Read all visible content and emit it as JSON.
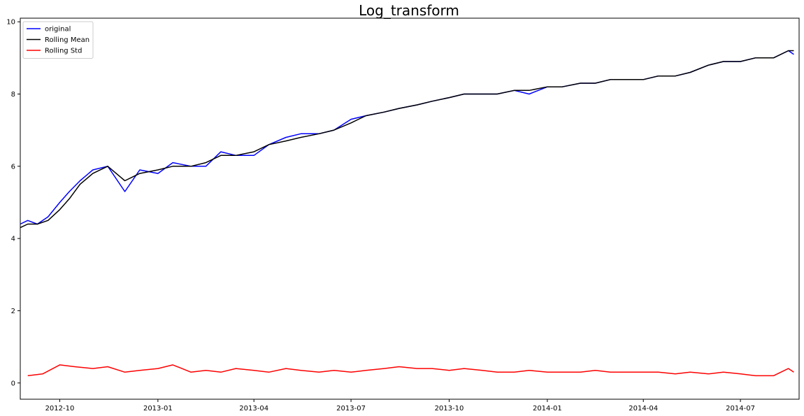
{
  "chart_data": {
    "type": "line",
    "title": "Log_transform",
    "xlabel": "",
    "ylabel": "",
    "x_range": [
      "2012-08-25",
      "2014-08-25"
    ],
    "ylim": [
      -0.45,
      10.1
    ],
    "y_ticks": [
      0,
      2,
      4,
      6,
      8,
      10
    ],
    "x_ticks": [
      {
        "date": "2012-10-01",
        "label": "2012-10"
      },
      {
        "date": "2013-01-01",
        "label": "2013-01"
      },
      {
        "date": "2013-04-01",
        "label": "2013-04"
      },
      {
        "date": "2013-07-01",
        "label": "2013-07"
      },
      {
        "date": "2013-10-01",
        "label": "2013-10"
      },
      {
        "date": "2014-01-01",
        "label": "2014-01"
      },
      {
        "date": "2014-04-01",
        "label": "2014-04"
      },
      {
        "date": "2014-07-01",
        "label": "2014-07"
      }
    ],
    "grid": false,
    "legend_position": "top-left",
    "series": [
      {
        "name": "original",
        "color": "#0000ff",
        "x": [
          "2012-08-25",
          "2012-09-01",
          "2012-09-10",
          "2012-09-20",
          "2012-10-01",
          "2012-10-10",
          "2012-10-20",
          "2012-11-01",
          "2012-11-15",
          "2012-12-01",
          "2012-12-15",
          "2013-01-01",
          "2013-01-15",
          "2013-02-01",
          "2013-02-15",
          "2013-03-01",
          "2013-03-15",
          "2013-04-01",
          "2013-04-15",
          "2013-05-01",
          "2013-05-15",
          "2013-06-01",
          "2013-06-15",
          "2013-07-01",
          "2013-07-15",
          "2013-08-01",
          "2013-08-15",
          "2013-09-01",
          "2013-09-15",
          "2013-10-01",
          "2013-10-15",
          "2013-11-01",
          "2013-11-15",
          "2013-12-01",
          "2013-12-15",
          "2014-01-01",
          "2014-01-15",
          "2014-02-01",
          "2014-02-15",
          "2014-03-01",
          "2014-03-15",
          "2014-04-01",
          "2014-04-15",
          "2014-05-01",
          "2014-05-15",
          "2014-06-01",
          "2014-06-15",
          "2014-07-01",
          "2014-07-15",
          "2014-08-01",
          "2014-08-15",
          "2014-08-20"
        ],
        "values": [
          4.4,
          4.5,
          4.4,
          4.6,
          5.0,
          5.3,
          5.6,
          5.9,
          6.0,
          5.3,
          5.9,
          5.8,
          6.1,
          6.0,
          6.0,
          6.4,
          6.3,
          6.3,
          6.6,
          6.8,
          6.9,
          6.9,
          7.0,
          7.3,
          7.4,
          7.5,
          7.6,
          7.7,
          7.8,
          7.9,
          8.0,
          8.0,
          8.0,
          8.1,
          8.0,
          8.2,
          8.2,
          8.3,
          8.3,
          8.4,
          8.4,
          8.4,
          8.5,
          8.5,
          8.6,
          8.8,
          8.9,
          8.9,
          9.0,
          9.0,
          9.2,
          9.1
        ]
      },
      {
        "name": "Rolling Mean",
        "color": "#000000",
        "x": [
          "2012-08-25",
          "2012-09-01",
          "2012-09-10",
          "2012-09-20",
          "2012-10-01",
          "2012-10-10",
          "2012-10-20",
          "2012-11-01",
          "2012-11-15",
          "2012-12-01",
          "2012-12-15",
          "2013-01-01",
          "2013-01-15",
          "2013-02-01",
          "2013-02-15",
          "2013-03-01",
          "2013-03-15",
          "2013-04-01",
          "2013-04-15",
          "2013-05-01",
          "2013-05-15",
          "2013-06-01",
          "2013-06-15",
          "2013-07-01",
          "2013-07-15",
          "2013-08-01",
          "2013-08-15",
          "2013-09-01",
          "2013-09-15",
          "2013-10-01",
          "2013-10-15",
          "2013-11-01",
          "2013-11-15",
          "2013-12-01",
          "2013-12-15",
          "2014-01-01",
          "2014-01-15",
          "2014-02-01",
          "2014-02-15",
          "2014-03-01",
          "2014-03-15",
          "2014-04-01",
          "2014-04-15",
          "2014-05-01",
          "2014-05-15",
          "2014-06-01",
          "2014-06-15",
          "2014-07-01",
          "2014-07-15",
          "2014-08-01",
          "2014-08-15",
          "2014-08-20"
        ],
        "values": [
          4.3,
          4.4,
          4.4,
          4.5,
          4.8,
          5.1,
          5.5,
          5.8,
          6.0,
          5.6,
          5.8,
          5.9,
          6.0,
          6.0,
          6.1,
          6.3,
          6.3,
          6.4,
          6.6,
          6.7,
          6.8,
          6.9,
          7.0,
          7.2,
          7.4,
          7.5,
          7.6,
          7.7,
          7.8,
          7.9,
          8.0,
          8.0,
          8.0,
          8.1,
          8.1,
          8.2,
          8.2,
          8.3,
          8.3,
          8.4,
          8.4,
          8.4,
          8.5,
          8.5,
          8.6,
          8.8,
          8.9,
          8.9,
          9.0,
          9.0,
          9.2,
          9.2
        ]
      },
      {
        "name": "Rolling Std",
        "color": "#ff0000",
        "x": [
          "2012-09-01",
          "2012-09-15",
          "2012-10-01",
          "2012-10-15",
          "2012-11-01",
          "2012-11-15",
          "2012-12-01",
          "2012-12-15",
          "2013-01-01",
          "2013-01-15",
          "2013-02-01",
          "2013-02-15",
          "2013-03-01",
          "2013-03-15",
          "2013-04-01",
          "2013-04-15",
          "2013-05-01",
          "2013-05-15",
          "2013-06-01",
          "2013-06-15",
          "2013-07-01",
          "2013-07-15",
          "2013-08-01",
          "2013-08-15",
          "2013-09-01",
          "2013-09-15",
          "2013-10-01",
          "2013-10-15",
          "2013-11-01",
          "2013-11-15",
          "2013-12-01",
          "2013-12-15",
          "2014-01-01",
          "2014-01-15",
          "2014-02-01",
          "2014-02-15",
          "2014-03-01",
          "2014-03-15",
          "2014-04-01",
          "2014-04-15",
          "2014-05-01",
          "2014-05-15",
          "2014-06-01",
          "2014-06-15",
          "2014-07-01",
          "2014-07-15",
          "2014-08-01",
          "2014-08-15",
          "2014-08-20"
        ],
        "values": [
          0.2,
          0.25,
          0.5,
          0.45,
          0.4,
          0.45,
          0.3,
          0.35,
          0.4,
          0.5,
          0.3,
          0.35,
          0.3,
          0.4,
          0.35,
          0.3,
          0.4,
          0.35,
          0.3,
          0.35,
          0.3,
          0.35,
          0.4,
          0.45,
          0.4,
          0.4,
          0.35,
          0.4,
          0.35,
          0.3,
          0.3,
          0.35,
          0.3,
          0.3,
          0.3,
          0.35,
          0.3,
          0.3,
          0.3,
          0.3,
          0.25,
          0.3,
          0.25,
          0.3,
          0.25,
          0.2,
          0.2,
          0.4,
          0.3
        ]
      }
    ]
  }
}
